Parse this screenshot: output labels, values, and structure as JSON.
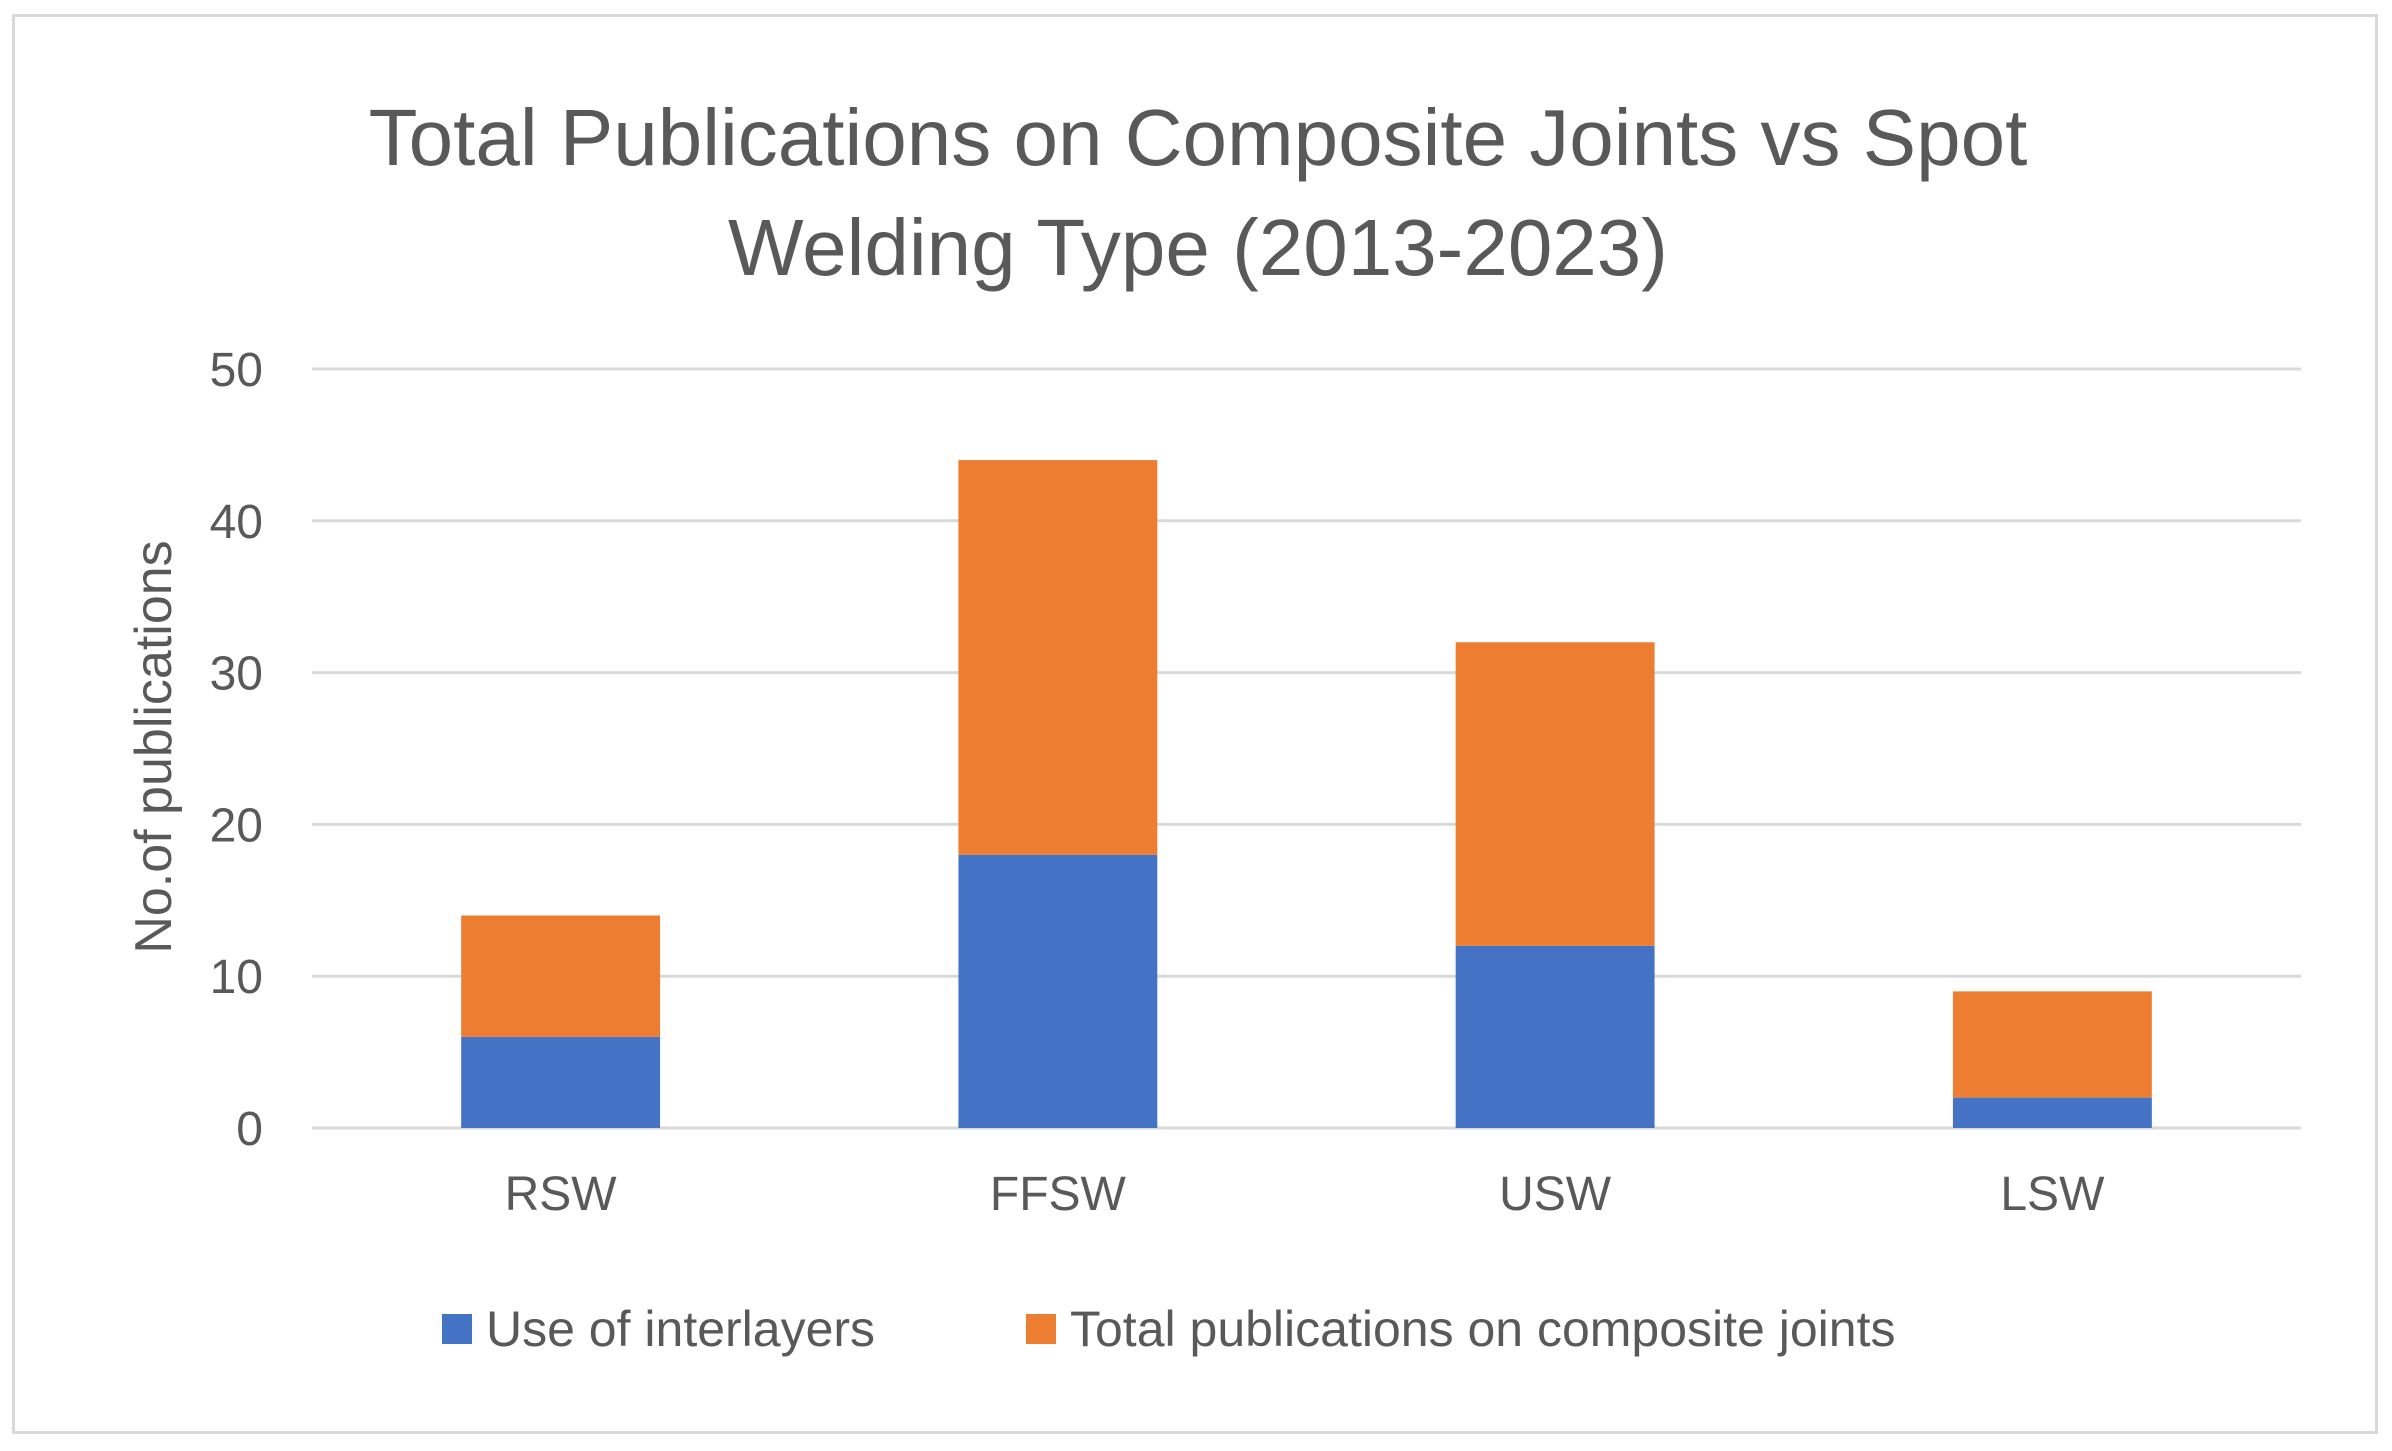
{
  "chart_data": {
    "type": "bar",
    "stacked": true,
    "title_lines": [
      "Total Publications on Composite Joints vs Spot",
      "Welding Type (2013-2023)"
    ],
    "xlabel": "",
    "ylabel": "No.of publications",
    "categories": [
      "RSW",
      "FFSW",
      "USW",
      "LSW"
    ],
    "series": [
      {
        "name": "Use of interlayers",
        "color": "#4472c4",
        "values": [
          6,
          18,
          12,
          2
        ]
      },
      {
        "name": "Total publications on composite joints",
        "color": "#ed7d31",
        "values": [
          8,
          26,
          20,
          7
        ]
      }
    ],
    "ylim": [
      0,
      50
    ],
    "yticks": [
      "0",
      "10",
      "20",
      "30",
      "40",
      "50"
    ],
    "grid": true,
    "legend_position": "bottom"
  }
}
